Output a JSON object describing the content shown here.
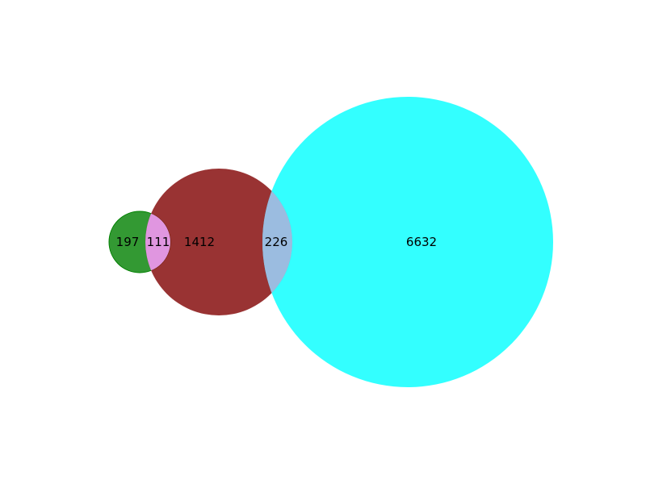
{
  "venn": {
    "colors": {
      "set_a": "#008000",
      "set_b": "#800000",
      "set_c": "#00ffff",
      "overlap_ab": "#e096e0",
      "overlap_bc": "#9bbce0"
    },
    "regions": {
      "a_only": "197",
      "a_and_b": "111",
      "b_only": "1412",
      "b_and_c": "226",
      "c_only": "6632"
    }
  }
}
